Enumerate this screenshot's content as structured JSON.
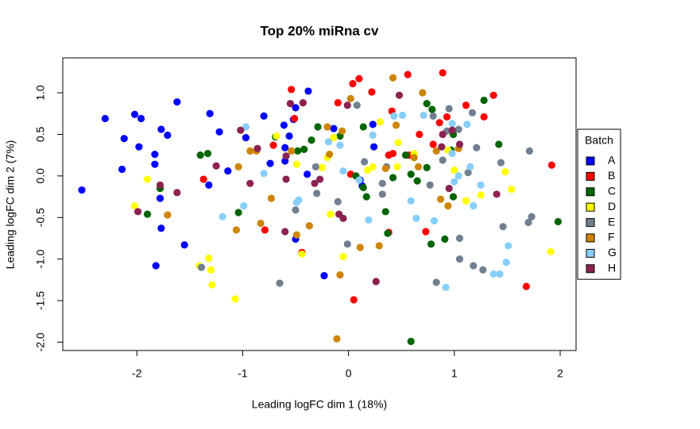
{
  "chart_data": {
    "type": "scatter",
    "title": "Top 20% miRna cv",
    "xlabel": "Leading logFC dim 1 (18%)",
    "ylabel": "Leading logFC dim 2 (7%)",
    "xlim": [
      -2.7,
      2.15
    ],
    "ylim": [
      -2.1,
      1.42
    ],
    "xticks": [
      -2,
      -1,
      0,
      1,
      2
    ],
    "yticks": [
      {
        "value": -2,
        "label": "-2.0"
      },
      -1.5,
      {
        "value": -1,
        "label": "-1.0"
      },
      -0.5,
      {
        "value": 0,
        "label": "0.0"
      },
      0.5,
      {
        "value": 1,
        "label": "1.0"
      }
    ],
    "legend_title": "Batch",
    "legend_position": "right",
    "series": [
      {
        "name": "A",
        "color": "#0000ff",
        "x": [
          -2.52,
          -2.3,
          -2.02,
          -1.96,
          -2.12,
          -1.98,
          -2.14,
          -1.83,
          -1.83,
          -1.77,
          -1.71,
          -1.62,
          -1.78,
          -1.77,
          -1.82,
          -1.55,
          -1.31,
          -1.22,
          -1.32,
          -1.14,
          -0.97,
          -0.8,
          -0.74,
          -0.61,
          -0.6,
          -0.6,
          -0.52,
          -0.38,
          -0.5,
          -0.5,
          -0.23,
          -0.14,
          0.11,
          0.13,
          0.23,
          0.24,
          -0.39,
          -0.56
        ],
        "values": [
          -0.17,
          0.69,
          0.74,
          0.69,
          0.45,
          0.35,
          0.08,
          0.26,
          0.14,
          0.56,
          0.49,
          0.89,
          -0.27,
          -0.63,
          -1.08,
          -0.83,
          0.75,
          0.53,
          -0.11,
          0.06,
          0.46,
          0.72,
          0.15,
          0.61,
          0.34,
          0.18,
          0.68,
          1.02,
          0.82,
          -0.76,
          -1.2,
          0.57,
          -0.05,
          -0.12,
          0.62,
          0.35,
          0.02,
          0.48
        ]
      },
      {
        "name": "B",
        "color": "#ff0000",
        "x": [
          -0.54,
          -0.1,
          0.04,
          0.1,
          0.22,
          0.56,
          0.89,
          1.11,
          1.37,
          1.28,
          0.93,
          0.86,
          0.41,
          0.42,
          0.57,
          0.67,
          0.8,
          1.92,
          1.68,
          0.05,
          0.38,
          0.73,
          -0.44,
          -0.79,
          -1.37,
          -0.71,
          -0.51,
          0.02,
          0.38
        ],
        "values": [
          1.04,
          0.88,
          1.11,
          1.17,
          1.01,
          1.22,
          1.24,
          0.85,
          0.97,
          0.71,
          0.71,
          0.64,
          0.78,
          0.27,
          0.25,
          0.5,
          0.38,
          0.13,
          -1.33,
          -1.49,
          -0.68,
          -0.67,
          -0.92,
          -0.65,
          -0.04,
          0.37,
          0.69,
          0.02,
          0.25
        ]
      },
      {
        "name": "C",
        "color": "#006400",
        "x": [
          -1.4,
          -1.33,
          -1.78,
          -1.9,
          -1.04,
          -0.69,
          -0.48,
          -0.42,
          -0.35,
          -0.29,
          -0.08,
          0.07,
          0.14,
          0.17,
          0.14,
          0.35,
          0.42,
          0.54,
          0.59,
          0.65,
          0.74,
          0.74,
          0.79,
          0.99,
          0.99,
          0.91,
          0.78,
          0.59,
          1.28,
          1.42,
          1.98,
          0.37,
          0.97
        ],
        "values": [
          0.25,
          0.27,
          -0.15,
          -0.46,
          -0.44,
          0.47,
          0.3,
          0.32,
          0.43,
          0.59,
          0.48,
          0.0,
          0.59,
          -0.25,
          -0.14,
          -0.43,
          -0.02,
          0.25,
          0.02,
          -0.06,
          0.1,
          0.87,
          0.8,
          0.5,
          -0.25,
          -0.76,
          -0.82,
          -1.99,
          0.91,
          0.38,
          -0.55,
          -0.69,
          0.31
        ]
      },
      {
        "name": "D",
        "color": "#ffff00",
        "x": [
          -1.9,
          -2.02,
          -1.71,
          -1.41,
          -1.32,
          -1.3,
          -1.29,
          -1.07,
          -0.68,
          -0.49,
          -0.2,
          -0.14,
          -0.17,
          -0.05,
          -0.25,
          0.18,
          0.3,
          0.23,
          0.47,
          0.62,
          0.94,
          1.0,
          1.11,
          1.25,
          1.48,
          1.54,
          1.91,
          -0.44,
          0.46
        ],
        "values": [
          -0.04,
          -0.36,
          -0.47,
          -1.08,
          -0.99,
          -1.13,
          -1.31,
          -1.48,
          0.48,
          0.14,
          0.22,
          0.46,
          -0.46,
          -0.97,
          0.1,
          0.07,
          0.65,
          0.11,
          0.4,
          0.27,
          0.31,
          0.07,
          -0.3,
          -0.23,
          0.05,
          -0.16,
          -0.91,
          -0.94,
          0.11
        ]
      },
      {
        "name": "E",
        "color": "#708090",
        "x": [
          -1.39,
          -0.65,
          -0.5,
          -0.31,
          -0.01,
          0.08,
          0.15,
          0.32,
          0.36,
          0.8,
          0.89,
          0.93,
          0.95,
          1.04,
          1.05,
          1.05,
          1.13,
          1.17,
          1.18,
          1.21,
          1.27,
          0.83,
          1.46,
          1.44,
          1.71,
          1.73,
          1.7,
          -0.1,
          -0.3,
          0.32,
          0.77
        ],
        "values": [
          -1.1,
          -1.29,
          -0.41,
          0.11,
          -0.82,
          0.85,
          0.17,
          -0.22,
          0.11,
          0.72,
          0.19,
          0.54,
          0.81,
          0.56,
          -0.75,
          -1.0,
          0.04,
          0.76,
          -1.08,
          0.34,
          -1.13,
          -1.28,
          -0.61,
          0.16,
          0.3,
          -0.49,
          -0.56,
          -0.31,
          -0.21,
          -0.09,
          -0.11
        ]
      },
      {
        "name": "F",
        "color": "#cd8500",
        "x": [
          -1.71,
          -1.06,
          -1.04,
          -0.93,
          -0.87,
          -0.83,
          -0.73,
          -0.49,
          -0.37,
          -0.2,
          -0.18,
          -0.06,
          -0.08,
          -0.11,
          0.02,
          0.11,
          0.29,
          0.35,
          0.42,
          0.45,
          0.62,
          0.66,
          0.7,
          0.83,
          0.87,
          0.94,
          1.04,
          -0.54
        ],
        "values": [
          -0.47,
          -0.65,
          0.11,
          0.3,
          0.3,
          -0.57,
          -0.27,
          -0.71,
          -0.6,
          0.59,
          0.26,
          0.54,
          -1.19,
          -1.96,
          0.93,
          -0.86,
          -0.84,
          0.09,
          1.18,
          0.61,
          0.22,
          0.11,
          1.0,
          0.3,
          -0.28,
          -0.36,
          0.33,
          0.3
        ]
      },
      {
        "name": "G",
        "color": "#87cefa",
        "x": [
          -1.19,
          -0.99,
          -0.97,
          -0.8,
          -0.49,
          -0.47,
          -0.19,
          -0.08,
          -0.05,
          0.1,
          0.19,
          0.23,
          0.43,
          0.51,
          0.59,
          0.64,
          0.71,
          0.81,
          0.92,
          0.98,
          0.98,
          1.0,
          1.04,
          1.12,
          1.18,
          1.15,
          1.25,
          1.37,
          1.43,
          1.49,
          1.51
        ],
        "values": [
          -0.49,
          -0.36,
          0.59,
          0.03,
          -0.32,
          -0.29,
          0.41,
          0.37,
          0.06,
          -0.05,
          -0.53,
          0.49,
          0.72,
          0.73,
          -0.3,
          -0.51,
          0.73,
          -0.54,
          -1.34,
          0.63,
          0.27,
          -0.07,
          0.0,
          0.62,
          -0.36,
          0.11,
          -0.11,
          -1.18,
          -1.18,
          -1.04,
          -0.84
        ]
      },
      {
        "name": "H",
        "color": "#8b2252",
        "x": [
          -1.78,
          -1.99,
          -1.62,
          -1.25,
          -1.02,
          -0.93,
          -0.86,
          -0.6,
          -0.55,
          -0.43,
          -0.59,
          -0.27,
          -0.32,
          -0.09,
          -0.05,
          -0.01,
          0.26,
          0.48,
          0.88,
          0.89,
          0.98,
          1.05,
          1.4,
          0.95,
          -0.59
        ],
        "values": [
          -0.11,
          -0.43,
          -0.2,
          0.12,
          0.55,
          -0.09,
          0.33,
          -0.67,
          0.87,
          0.88,
          -0.04,
          -0.04,
          -0.09,
          -0.46,
          -0.51,
          0.85,
          -1.27,
          0.97,
          0.35,
          0.5,
          0.55,
          0.38,
          -0.22,
          -0.15,
          0.24
        ]
      }
    ]
  }
}
